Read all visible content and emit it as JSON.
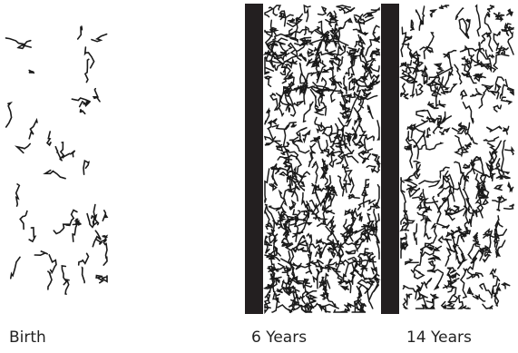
{
  "panels": [
    {
      "label": "Birth"
    },
    {
      "label": "6 Years"
    },
    {
      "label": "14 Years"
    }
  ]
}
